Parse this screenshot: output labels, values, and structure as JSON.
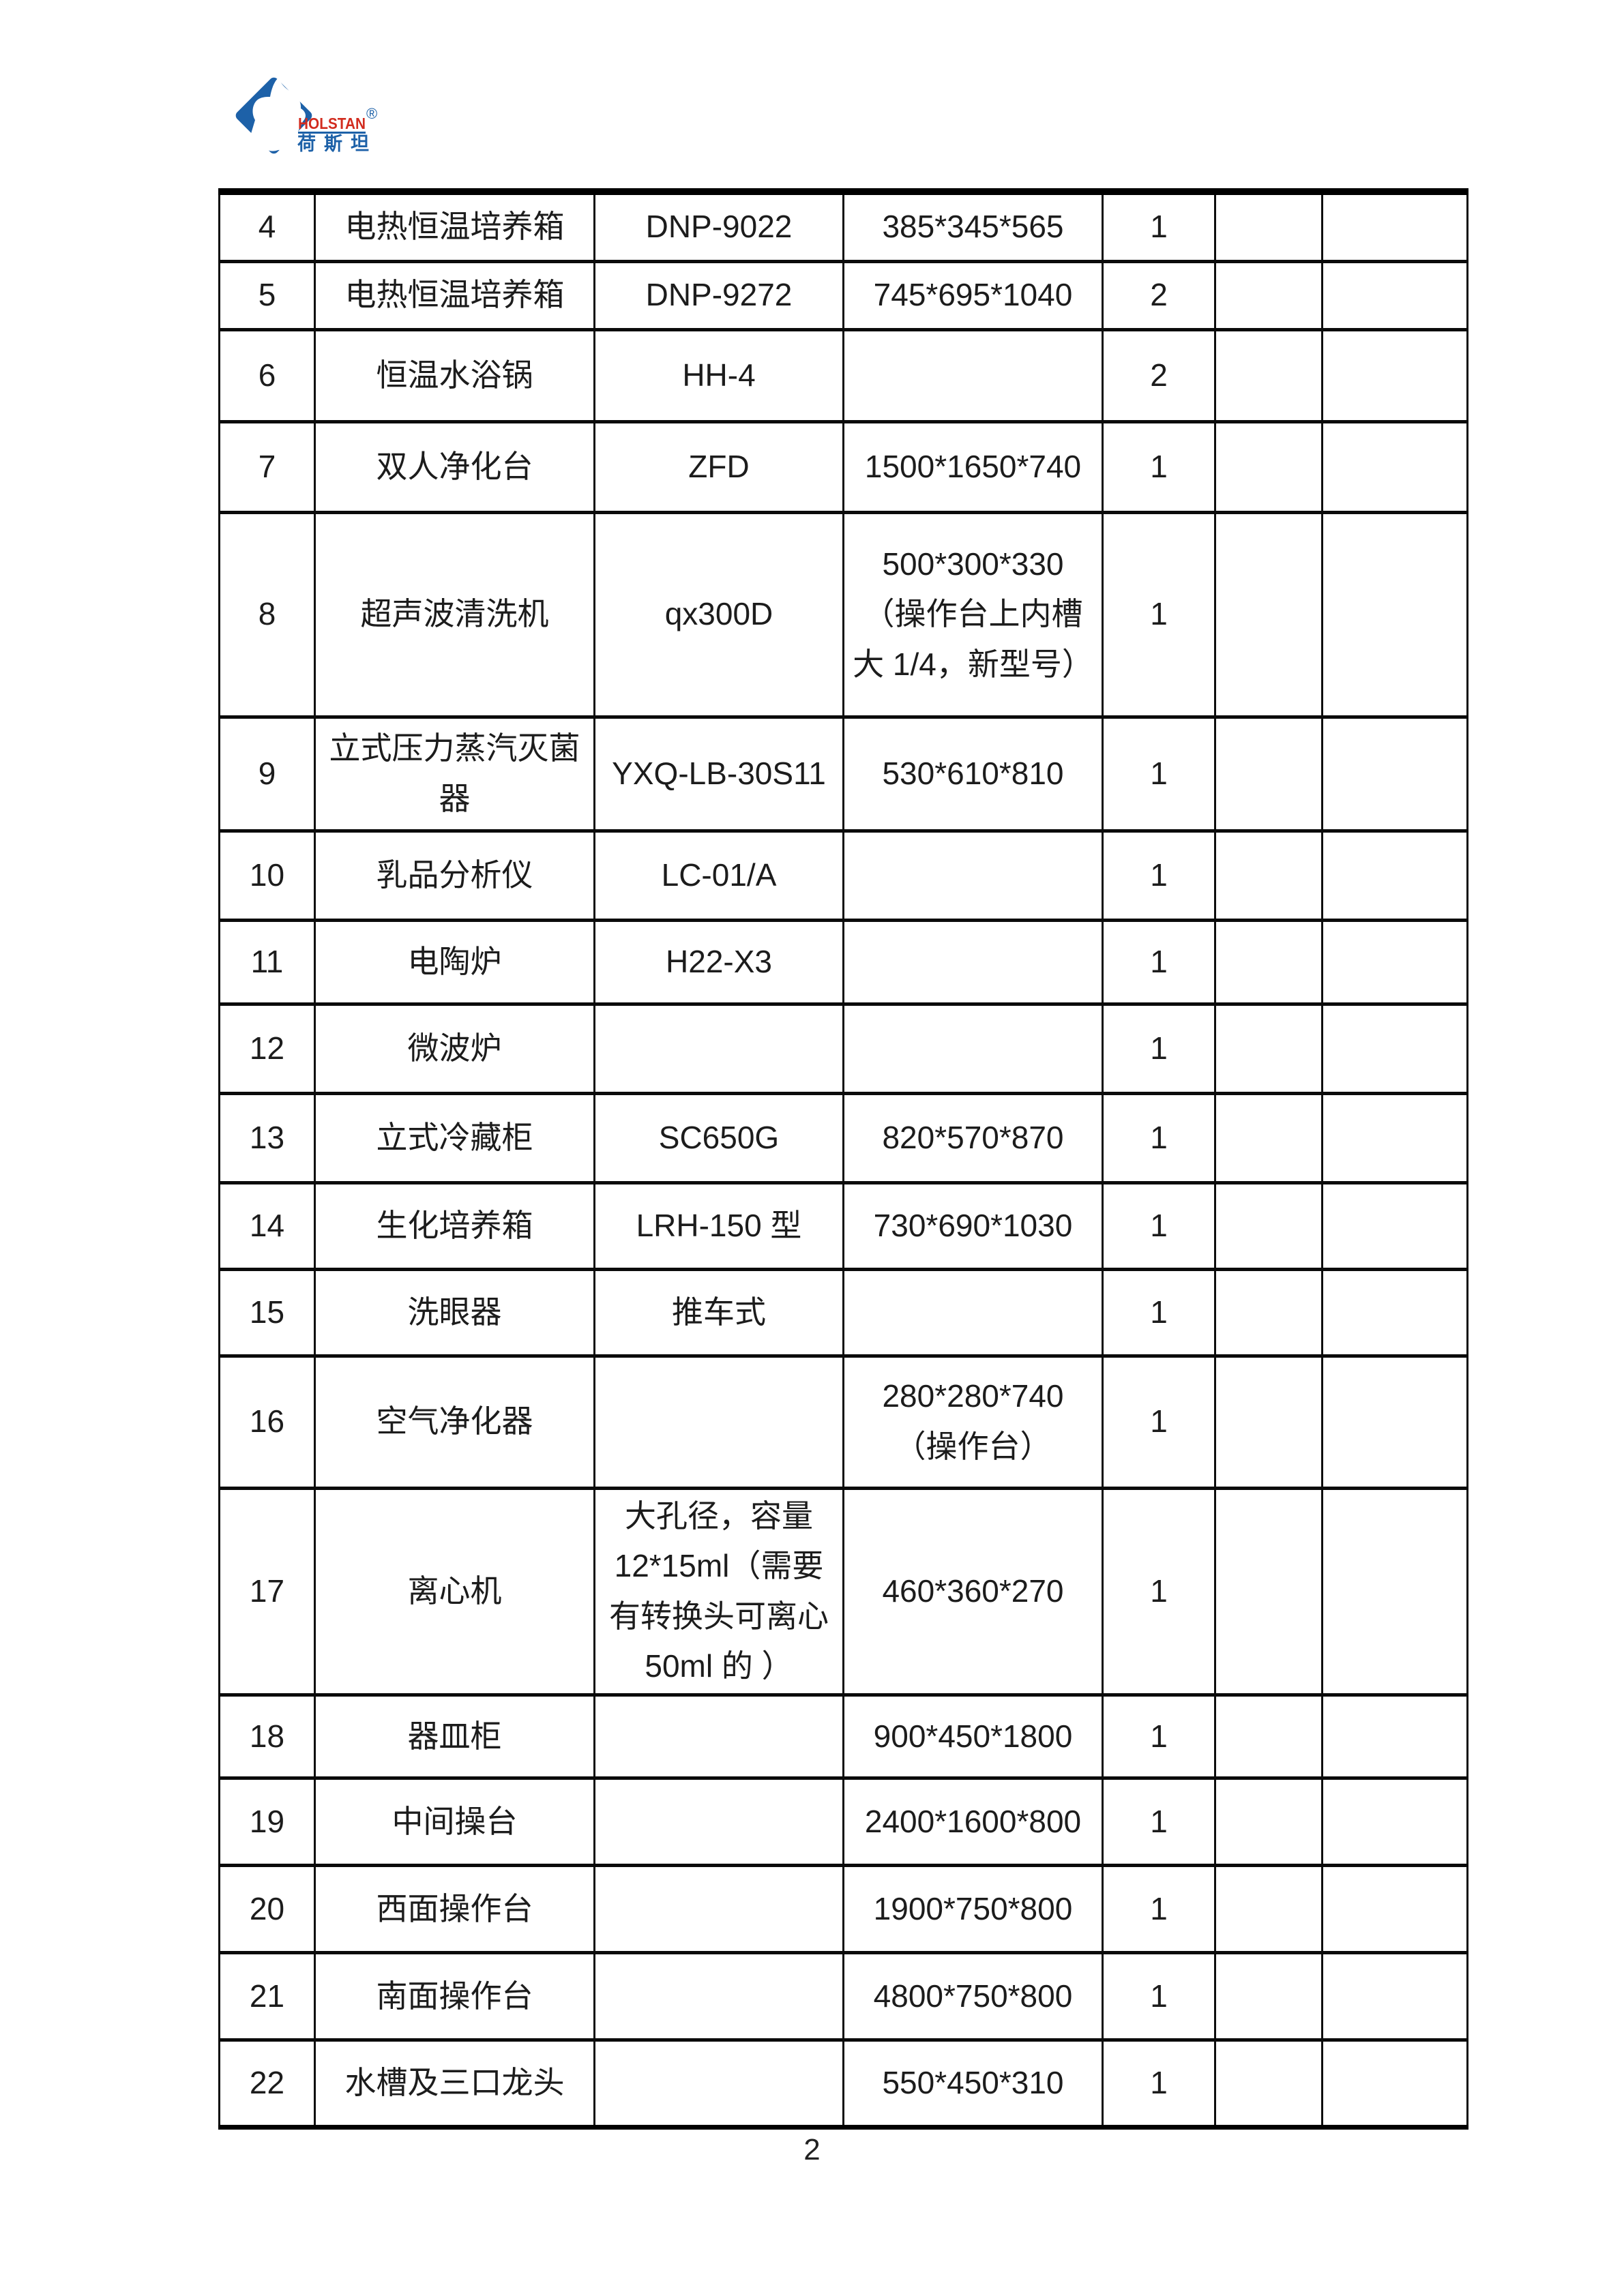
{
  "logo": {
    "brand": "HOLSTAN",
    "brand_cn": "荷斯坦",
    "registered_mark": "®",
    "colors": {
      "blue": "#1d61a8",
      "red": "#d22c1f",
      "white": "#ffffff"
    }
  },
  "table": {
    "rows": [
      {
        "no": "4",
        "name": "电热恒温培养箱",
        "model": "DNP-9022",
        "dims": "385*345*565",
        "qty": "1",
        "extra1": "",
        "extra2": ""
      },
      {
        "no": "5",
        "name": "电热恒温培养箱",
        "model": "DNP-9272",
        "dims": "745*695*1040",
        "qty": "2",
        "extra1": "",
        "extra2": ""
      },
      {
        "no": "6",
        "name": "恒温水浴锅",
        "model": "HH-4",
        "dims": "",
        "qty": "2",
        "extra1": "",
        "extra2": ""
      },
      {
        "no": "7",
        "name": "双人净化台",
        "model": "ZFD",
        "dims": "1500*1650*740",
        "qty": "1",
        "extra1": "",
        "extra2": ""
      },
      {
        "no": "8",
        "name": "超声波清洗机",
        "model": "qx300D",
        "dims": "500*300*330（操作台上内槽大 1/4，新型号）",
        "qty": "1",
        "extra1": "",
        "extra2": ""
      },
      {
        "no": "9",
        "name": "立式压力蒸汽灭菌器",
        "model": "YXQ-LB-30S11",
        "dims": "530*610*810",
        "qty": "1",
        "extra1": "",
        "extra2": ""
      },
      {
        "no": "10",
        "name": "乳品分析仪",
        "model": "LC-01/A",
        "dims": "",
        "qty": "1",
        "extra1": "",
        "extra2": ""
      },
      {
        "no": "11",
        "name": "电陶炉",
        "model": "H22-X3",
        "dims": "",
        "qty": "1",
        "extra1": "",
        "extra2": ""
      },
      {
        "no": "12",
        "name": "微波炉",
        "model": "",
        "dims": "",
        "qty": "1",
        "extra1": "",
        "extra2": ""
      },
      {
        "no": "13",
        "name": "立式冷藏柜",
        "model": "SC650G",
        "dims": "820*570*870",
        "qty": "1",
        "extra1": "",
        "extra2": ""
      },
      {
        "no": "14",
        "name": "生化培养箱",
        "model": "LRH-150 型",
        "dims": "730*690*1030",
        "qty": "1",
        "extra1": "",
        "extra2": ""
      },
      {
        "no": "15",
        "name": "洗眼器",
        "model": "推车式",
        "dims": "",
        "qty": "1",
        "extra1": "",
        "extra2": ""
      },
      {
        "no": "16",
        "name": "空气净化器",
        "model": "",
        "dims": "280*280*740（操作台）",
        "qty": "1",
        "extra1": "",
        "extra2": ""
      },
      {
        "no": "17",
        "name": "离心机",
        "model": "大孔径，容量 12*15ml（需要有转换头可离心 50ml 的 ）",
        "dims": "460*360*270",
        "qty": "1",
        "extra1": "",
        "extra2": ""
      },
      {
        "no": "18",
        "name": "器皿柜",
        "model": "",
        "dims": "900*450*1800",
        "qty": "1",
        "extra1": "",
        "extra2": ""
      },
      {
        "no": "19",
        "name": "中间操台",
        "model": "",
        "dims": "2400*1600*800",
        "qty": "1",
        "extra1": "",
        "extra2": ""
      },
      {
        "no": "20",
        "name": "西面操作台",
        "model": "",
        "dims": "1900*750*800",
        "qty": "1",
        "extra1": "",
        "extra2": ""
      },
      {
        "no": "21",
        "name": "南面操作台",
        "model": "",
        "dims": "4800*750*800",
        "qty": "1",
        "extra1": "",
        "extra2": ""
      },
      {
        "no": "22",
        "name": "水槽及三口龙头",
        "model": "",
        "dims": "550*450*310",
        "qty": "1",
        "extra1": "",
        "extra2": ""
      }
    ]
  },
  "page": {
    "number": "2"
  }
}
